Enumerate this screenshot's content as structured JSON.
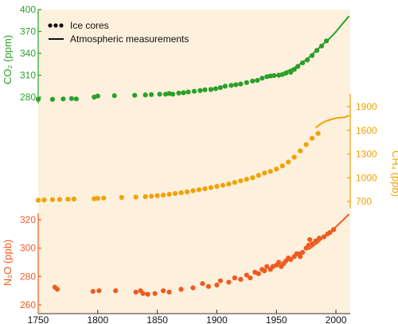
{
  "chart_data": {
    "type": "scatter",
    "title": "",
    "x": {
      "label": "",
      "range": [
        1750,
        2012
      ],
      "ticks": [
        1750,
        1800,
        1850,
        1900,
        1950,
        2000
      ],
      "tick_labels": [
        "1750",
        "1800",
        "1850",
        "1900",
        "1950",
        "2000"
      ]
    },
    "legend": {
      "placement": "top-left",
      "entries": [
        {
          "label": "Ice cores",
          "marker": "dots"
        },
        {
          "label": "Atmospheric measurements",
          "marker": "line"
        }
      ]
    },
    "panels": [
      {
        "name": "co2",
        "axis_side": "left",
        "ylabel": "CO₂ (ppm)",
        "color": "#2aa02a",
        "ticks": [
          280,
          310,
          340,
          370,
          400
        ],
        "tick_labels": [
          "280",
          "310",
          "340",
          "370",
          "400"
        ],
        "ice_cores": [
          [
            1750,
            277
          ],
          [
            1762,
            277
          ],
          [
            1771,
            277.5
          ],
          [
            1778,
            278
          ],
          [
            1782,
            277.5
          ],
          [
            1797,
            280
          ],
          [
            1800,
            281.5
          ],
          [
            1814,
            282
          ],
          [
            1831,
            282.5
          ],
          [
            1840,
            283
          ],
          [
            1845,
            283.5
          ],
          [
            1852,
            284
          ],
          [
            1857,
            284
          ],
          [
            1860,
            285
          ],
          [
            1863,
            284
          ],
          [
            1868,
            285.5
          ],
          [
            1872,
            286
          ],
          [
            1876,
            287
          ],
          [
            1881,
            288
          ],
          [
            1886,
            289
          ],
          [
            1890,
            290
          ],
          [
            1895,
            290.5
          ],
          [
            1899,
            291.5
          ],
          [
            1903,
            293
          ],
          [
            1907,
            295
          ],
          [
            1912,
            296
          ],
          [
            1916,
            297
          ],
          [
            1920,
            298
          ],
          [
            1925,
            300
          ],
          [
            1930,
            302
          ],
          [
            1934,
            303
          ],
          [
            1938,
            306
          ],
          [
            1942,
            308
          ],
          [
            1945,
            309
          ],
          [
            1948,
            309.5
          ],
          [
            1952,
            310
          ],
          [
            1955,
            311
          ],
          [
            1958,
            313
          ],
          [
            1962,
            314
          ],
          [
            1965,
            318
          ],
          [
            1968,
            322
          ],
          [
            1972,
            327
          ],
          [
            1976,
            331
          ],
          [
            1980,
            337
          ],
          [
            1984,
            344
          ],
          [
            1988,
            350
          ],
          [
            1992,
            357
          ]
        ],
        "atmospheric": [
          [
            1958,
            315
          ],
          [
            1965,
            320
          ],
          [
            1970,
            325.5
          ],
          [
            1975,
            331
          ],
          [
            1980,
            338.5
          ],
          [
            1985,
            346
          ],
          [
            1990,
            354
          ],
          [
            1995,
            361
          ],
          [
            2000,
            369.5
          ],
          [
            2005,
            379.5
          ],
          [
            2011,
            391
          ]
        ]
      },
      {
        "name": "ch4",
        "axis_side": "right",
        "ylabel": "CH₄ (ppb)",
        "color": "#f2a100",
        "ticks": [
          700,
          1000,
          1300,
          1600,
          1900
        ],
        "tick_labels": [
          "700",
          "1000",
          "1300",
          "1600",
          "1900"
        ],
        "ice_cores": [
          [
            1750,
            715
          ],
          [
            1755,
            718
          ],
          [
            1762,
            722
          ],
          [
            1768,
            725
          ],
          [
            1775,
            728
          ],
          [
            1780,
            730
          ],
          [
            1797,
            734
          ],
          [
            1800,
            738
          ],
          [
            1805,
            742
          ],
          [
            1820,
            750
          ],
          [
            1832,
            755
          ],
          [
            1840,
            760
          ],
          [
            1845,
            766
          ],
          [
            1850,
            772
          ],
          [
            1855,
            780
          ],
          [
            1860,
            790
          ],
          [
            1865,
            800
          ],
          [
            1870,
            810
          ],
          [
            1875,
            820
          ],
          [
            1880,
            835
          ],
          [
            1885,
            848
          ],
          [
            1890,
            860
          ],
          [
            1895,
            875
          ],
          [
            1900,
            890
          ],
          [
            1905,
            905
          ],
          [
            1910,
            920
          ],
          [
            1915,
            940
          ],
          [
            1920,
            960
          ],
          [
            1925,
            980
          ],
          [
            1930,
            1000
          ],
          [
            1935,
            1030
          ],
          [
            1940,
            1060
          ],
          [
            1945,
            1080
          ],
          [
            1950,
            1110
          ],
          [
            1955,
            1150
          ],
          [
            1960,
            1200
          ],
          [
            1965,
            1260
          ],
          [
            1970,
            1340
          ],
          [
            1975,
            1420
          ],
          [
            1980,
            1500
          ],
          [
            1985,
            1560
          ]
        ],
        "atmospheric": [
          [
            1983,
            1635
          ],
          [
            1988,
            1690
          ],
          [
            1992,
            1720
          ],
          [
            1996,
            1740
          ],
          [
            2000,
            1755
          ],
          [
            2004,
            1762
          ],
          [
            2008,
            1768
          ],
          [
            2011,
            1790
          ]
        ]
      },
      {
        "name": "n2o",
        "axis_side": "left",
        "ylabel": "N₂O (ppb)",
        "color": "#f05a1e",
        "ticks": [
          260,
          280,
          300,
          320
        ],
        "tick_labels": [
          "260",
          "280",
          "300",
          "320"
        ],
        "ice_cores": [
          [
            1764,
            272.5
          ],
          [
            1766,
            271
          ],
          [
            1796,
            269.5
          ],
          [
            1801,
            270
          ],
          [
            1815,
            270
          ],
          [
            1832,
            269
          ],
          [
            1836,
            270
          ],
          [
            1838,
            268
          ],
          [
            1842,
            267.5
          ],
          [
            1848,
            268
          ],
          [
            1855,
            270
          ],
          [
            1860,
            269
          ],
          [
            1870,
            271
          ],
          [
            1880,
            272
          ],
          [
            1888,
            275
          ],
          [
            1893,
            273
          ],
          [
            1900,
            274
          ],
          [
            1903,
            277
          ],
          [
            1910,
            276
          ],
          [
            1915,
            279
          ],
          [
            1920,
            278
          ],
          [
            1925,
            281
          ],
          [
            1928,
            279
          ],
          [
            1932,
            283
          ],
          [
            1935,
            282
          ],
          [
            1938,
            285
          ],
          [
            1940,
            284
          ],
          [
            1942,
            287
          ],
          [
            1945,
            285
          ],
          [
            1947,
            287
          ],
          [
            1950,
            288
          ],
          [
            1952,
            290
          ],
          [
            1954,
            287
          ],
          [
            1956,
            289
          ],
          [
            1958,
            291
          ],
          [
            1960,
            293
          ],
          [
            1962,
            292
          ],
          [
            1965,
            294
          ],
          [
            1967,
            296
          ],
          [
            1969,
            296
          ],
          [
            1970,
            294
          ],
          [
            1972,
            297
          ],
          [
            1975,
            300
          ],
          [
            1977,
            302
          ],
          [
            1978,
            306
          ],
          [
            1980,
            303
          ],
          [
            1983,
            305
          ],
          [
            1986,
            307
          ],
          [
            1990,
            308
          ],
          [
            1993,
            310
          ],
          [
            1995,
            311
          ],
          [
            1998,
            313
          ]
        ],
        "atmospheric": [
          [
            1977,
            299
          ],
          [
            1980,
            301
          ],
          [
            1985,
            304
          ],
          [
            1990,
            308
          ],
          [
            1995,
            311
          ],
          [
            2000,
            315
          ],
          [
            2005,
            319
          ],
          [
            2011,
            324
          ]
        ]
      }
    ],
    "background_color": "#fdf0dc",
    "grid": false
  }
}
